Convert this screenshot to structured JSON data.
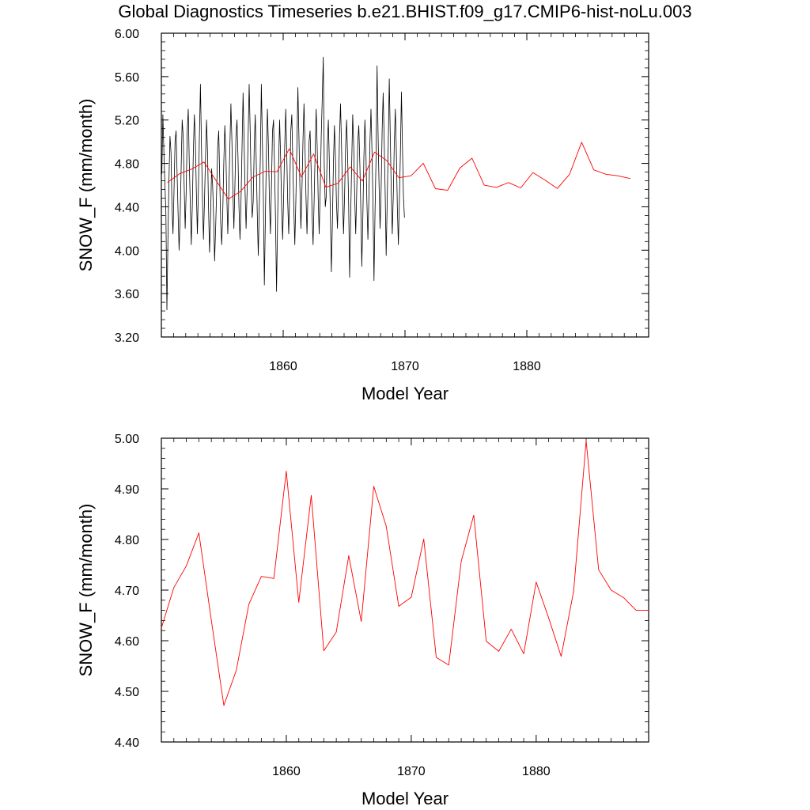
{
  "title": "Global Diagnostics Timeseries b.e21.BHIST.f09_g17.CMIP6-hist-noLu.003",
  "colors": {
    "monthly": "#000000",
    "annual": "#ff0000",
    "axis": "#000000"
  },
  "chart_data": [
    {
      "type": "line",
      "xlabel": "Model Year",
      "ylabel": "SNOW_F (mm/month)",
      "xlim": [
        1850,
        1890
      ],
      "ylim": [
        3.2,
        6.0
      ],
      "xticks": [
        "1860",
        "1870",
        "1880"
      ],
      "yticks": [
        "3.20",
        "3.60",
        "4.00",
        "4.40",
        "4.80",
        "5.20",
        "5.60",
        "6.00"
      ],
      "series": [
        {
          "style": "monthly",
          "x_start": 1850.04,
          "x_step": 0.0833333,
          "values": [
            4.7,
            5.25,
            4.9,
            4.6,
            4.35,
            3.45,
            4.1,
            4.65,
            5.05,
            4.9,
            4.4,
            4.15,
            4.55,
            5.0,
            5.1,
            4.7,
            4.35,
            4.0,
            4.3,
            4.75,
            5.2,
            5.05,
            4.6,
            4.2,
            4.55,
            5.1,
            5.3,
            4.8,
            4.45,
            4.05,
            4.4,
            4.9,
            5.25,
            5.0,
            4.55,
            4.15,
            4.55,
            5.05,
            5.53,
            4.95,
            4.5,
            4.1,
            4.45,
            4.85,
            5.2,
            4.9,
            4.4,
            3.98,
            4.3,
            4.75,
            4.6,
            4.3,
            3.9,
            4.2,
            4.55,
            4.95,
            5.1,
            4.65,
            4.25,
            4.05,
            4.35,
            4.8,
            5.15,
            4.9,
            4.5,
            4.15,
            4.55,
            4.95,
            5.35,
            5.0,
            4.55,
            4.2,
            4.6,
            5.05,
            5.2,
            4.85,
            4.4,
            4.1,
            4.45,
            4.95,
            5.45,
            5.0,
            4.55,
            4.2,
            4.55,
            5.05,
            5.53,
            5.1,
            4.6,
            4.3,
            4.45,
            4.95,
            5.25,
            4.8,
            4.35,
            3.95,
            4.4,
            4.85,
            5.53,
            5.0,
            4.5,
            3.68,
            4.3,
            4.9,
            5.3,
            4.95,
            4.45,
            4.15,
            4.6,
            5.1,
            5.2,
            4.75,
            4.3,
            3.62,
            4.25,
            4.8,
            5.2,
            4.85,
            4.4,
            4.1,
            4.5,
            4.95,
            5.3,
            4.9,
            4.45,
            4.15,
            4.55,
            5.1,
            5.25,
            4.8,
            4.4,
            4.05,
            4.45,
            4.95,
            5.5,
            5.05,
            4.6,
            4.2,
            4.55,
            5.0,
            5.35,
            4.95,
            4.5,
            4.15,
            4.55,
            5.0,
            5.1,
            4.75,
            4.35,
            4.05,
            4.45,
            4.9,
            5.3,
            4.95,
            4.5,
            4.15,
            4.55,
            5.05,
            5.4,
            5.78,
            4.8,
            4.4,
            4.5,
            4.95,
            5.2,
            4.8,
            4.35,
            3.8,
            4.25,
            4.8,
            5.15,
            4.85,
            4.45,
            4.2,
            4.55,
            5.05,
            5.35,
            4.95,
            4.5,
            4.15,
            4.5,
            4.95,
            5.2,
            4.85,
            4.45,
            3.75,
            4.3,
            4.8,
            5.25,
            4.95,
            4.5,
            4.15,
            4.55,
            5.0,
            5.15,
            4.8,
            4.4,
            3.85,
            4.3,
            4.85,
            5.2,
            4.9,
            4.45,
            4.1,
            4.5,
            5.0,
            5.3,
            4.9,
            4.45,
            3.72,
            4.35,
            4.85,
            5.7,
            5.05,
            4.6,
            4.2,
            4.55,
            5.1,
            5.45,
            5.0,
            4.55,
            3.95,
            4.45,
            4.95,
            5.58,
            5.05,
            4.55,
            4.15,
            4.5,
            5.0,
            5.3,
            4.9,
            4.4,
            4.05,
            4.45,
            4.9,
            5.46,
            4.95,
            4.5,
            4.3
          ]
        },
        {
          "style": "annual",
          "x": [
            1850.5,
            1851.5,
            1852.5,
            1853.5,
            1854.5,
            1855.5,
            1856.5,
            1857.5,
            1858.5,
            1859.5,
            1860.5,
            1861.5,
            1862.5,
            1863.5,
            1864.5,
            1865.5,
            1866.5,
            1867.5,
            1868.5,
            1869.5,
            1870.5,
            1871.5,
            1872.5,
            1873.5,
            1874.5,
            1875.5,
            1876.5,
            1877.5,
            1878.5,
            1879.5,
            1880.5,
            1881.5,
            1882.5,
            1883.5,
            1884.5,
            1885.5,
            1886.5,
            1887.5,
            1888.5
          ],
          "values": [
            4.625,
            4.705,
            4.748,
            4.813,
            4.64,
            4.472,
            4.542,
            4.672,
            4.727,
            4.723,
            4.935,
            4.676,
            4.887,
            4.58,
            4.617,
            4.768,
            4.638,
            4.905,
            4.826,
            4.668,
            4.686,
            4.801,
            4.567,
            4.552,
            4.757,
            4.848,
            4.599,
            4.579,
            4.623,
            4.574,
            4.716,
            4.645,
            4.569,
            4.698,
            4.995,
            4.74,
            4.7,
            4.685,
            4.66
          ]
        }
      ]
    },
    {
      "type": "line",
      "xlabel": "Model Year",
      "ylabel": "SNOW_F (mm/month)",
      "xlim": [
        1850,
        1889
      ],
      "ylim": [
        4.4,
        5.0
      ],
      "xticks": [
        "1860",
        "1870",
        "1880"
      ],
      "yticks": [
        "4.40",
        "4.50",
        "4.60",
        "4.70",
        "4.80",
        "4.90",
        "5.00"
      ],
      "series": [
        {
          "style": "annual",
          "x": [
            1850.0,
            1851.0,
            1852.0,
            1853.0,
            1854.0,
            1855.0,
            1856.0,
            1857.0,
            1858.0,
            1859.0,
            1860.0,
            1861.0,
            1862.0,
            1863.0,
            1864.0,
            1865.0,
            1866.0,
            1867.0,
            1868.0,
            1869.0,
            1870.0,
            1871.0,
            1872.0,
            1873.0,
            1874.0,
            1875.0,
            1876.0,
            1877.0,
            1878.0,
            1879.0,
            1880.0,
            1881.0,
            1882.0,
            1883.0,
            1884.0,
            1885.0,
            1886.0,
            1887.0,
            1888.0,
            1889.0
          ],
          "values": [
            4.625,
            4.705,
            4.748,
            4.813,
            4.64,
            4.472,
            4.542,
            4.672,
            4.727,
            4.723,
            4.935,
            4.676,
            4.887,
            4.58,
            4.617,
            4.768,
            4.638,
            4.905,
            4.826,
            4.668,
            4.686,
            4.801,
            4.567,
            4.552,
            4.757,
            4.848,
            4.599,
            4.579,
            4.623,
            4.574,
            4.716,
            4.645,
            4.569,
            4.698,
            4.995,
            4.74,
            4.7,
            4.685,
            4.66,
            4.66
          ]
        }
      ]
    }
  ]
}
